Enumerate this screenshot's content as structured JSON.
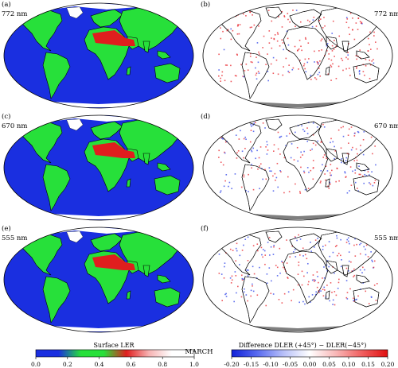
{
  "month": "MARCH",
  "colors": {
    "ler_ocean": "#1a2fe0",
    "ler_land_low": "#27e03a",
    "ler_land_high": "#e01e1e",
    "ler_snow": "#ffffff",
    "diff_background": "#ffffff",
    "diff_positive": "#e8232a",
    "diff_negative": "#2a3fe8",
    "missing": "#7f7f7f",
    "coast": "#000000"
  },
  "panels": [
    {
      "id": "a",
      "label": "(a)",
      "wavelength": "772 nm",
      "type": "surface-ler"
    },
    {
      "id": "b",
      "label": "(b)",
      "wavelength": "772 nm",
      "type": "dler-difference"
    },
    {
      "id": "c",
      "label": "(c)",
      "wavelength": "670 nm",
      "type": "surface-ler"
    },
    {
      "id": "d",
      "label": "(d)",
      "wavelength": "670 nm",
      "type": "dler-difference"
    },
    {
      "id": "e",
      "label": "(e)",
      "wavelength": "555 nm",
      "type": "surface-ler"
    },
    {
      "id": "f",
      "label": "(f)",
      "wavelength": "555 nm",
      "type": "dler-difference"
    }
  ],
  "colorbar_left": {
    "title": "Surface LER",
    "ticks": [
      "0.0",
      "0.2",
      "0.4",
      "0.6",
      "0.8",
      "1.0"
    ],
    "range": [
      0.0,
      1.0
    ],
    "stops": [
      "#1a2fe0",
      "#1a2fe0",
      "#27e03a",
      "#27e03a",
      "#e01e1e",
      "#f6b3b3",
      "#ffffff",
      "#ffffff"
    ]
  },
  "colorbar_right": {
    "title": "Difference DLER (+45°) − DLER(−45°)",
    "ticks": [
      "-0.20",
      "-0.15",
      "-0.10",
      "-0.05",
      "0.00",
      "0.05",
      "0.10",
      "0.15",
      "0.20"
    ],
    "range": [
      -0.2,
      0.2
    ],
    "stops": [
      "#1020d8",
      "#5a6cf0",
      "#b8c0f8",
      "#ffffff",
      "#f8b8b8",
      "#f06060",
      "#e01010"
    ]
  }
}
